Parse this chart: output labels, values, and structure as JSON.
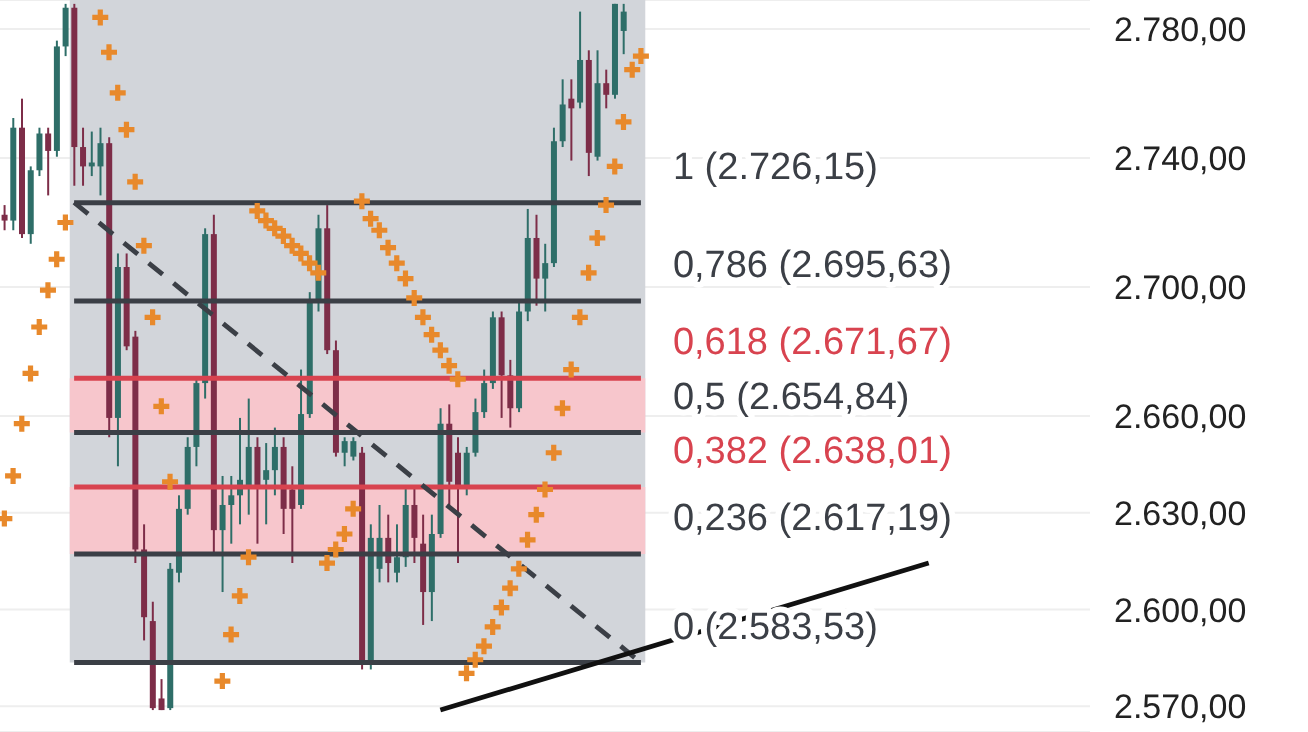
{
  "chart_data": {
    "type": "candlestick",
    "categories": [
      null,
      null,
      null,
      null,
      null,
      null,
      null,
      null,
      null,
      null,
      null,
      null,
      null,
      null,
      null,
      null,
      null,
      null,
      null,
      null,
      null,
      null,
      null,
      null,
      null,
      null,
      null,
      null,
      null,
      null,
      null,
      null,
      null,
      null,
      null,
      null,
      null,
      null,
      null,
      null,
      null,
      null,
      null,
      null,
      null,
      null,
      null,
      null,
      null,
      null,
      null,
      null,
      null,
      null,
      null,
      null,
      null,
      null,
      null,
      null,
      null,
      null,
      null,
      null,
      null,
      null,
      null,
      null,
      null,
      null,
      null,
      null,
      null,
      null,
      null,
      null,
      null,
      null,
      null,
      null,
      null,
      null,
      null,
      null,
      null,
      null,
      null,
      null,
      null,
      null,
      null,
      null,
      null,
      null,
      null,
      null,
      null,
      null,
      null,
      null,
      null,
      null,
      null,
      null,
      null,
      null,
      null,
      null,
      null,
      null,
      null,
      null,
      null,
      null,
      null,
      null,
      null,
      null,
      null,
      null,
      null,
      null,
      null,
      null,
      null
    ],
    "ohlc": [
      [
        2722.4,
        2725.4,
        2717.6,
        2720.6
      ],
      [
        2720.6,
        2752.4,
        2717.6,
        2749.4
      ],
      [
        2749.4,
        2758.4,
        2715.2,
        2716.4
      ],
      [
        2716.4,
        2737.4,
        2713.4,
        2736.2
      ],
      [
        2736.2,
        2749.4,
        2734.4,
        2747.6
      ],
      [
        2747.6,
        2749.4,
        2728.4,
        2742.2
      ],
      [
        2742.2,
        2776.4,
        2740.4,
        2774.6
      ],
      [
        2774.6,
        2787.8,
        2771.6,
        2786.6
      ],
      [
        2786.6,
        2787.8,
        2731.4,
        2743.4
      ],
      [
        2743.4,
        2749.4,
        2731.4,
        2737.4
      ],
      [
        2737.4,
        2748.2,
        2734.4,
        2738.6
      ],
      [
        2737.4,
        2749.4,
        2728.4,
        2744.6
      ],
      [
        2744.6,
        2746.4,
        2653.4,
        2659.4
      ],
      [
        2659.4,
        2710.4,
        2644.4,
        2706.2
      ],
      [
        2706.2,
        2710.4,
        2680.4,
        2681.6
      ],
      [
        2684.6,
        2686.4,
        2614.4,
        2618.6
      ],
      [
        2618.6,
        2626.4,
        2590.4,
        2597.6
      ],
      [
        2596.4,
        2602.4,
        2568.8,
        2569.4
      ],
      [
        2572.4,
        2578.4,
        2568.8,
        2568.8
      ],
      [
        2569.4,
        2614.4,
        2568.8,
        2612.6
      ],
      [
        2611.4,
        2635.4,
        2608.4,
        2631.2
      ],
      [
        2631.2,
        2653.4,
        2629.4,
        2650.4
      ],
      [
        2650.4,
        2671.4,
        2644.4,
        2670.2
      ],
      [
        2670.2,
        2718.2,
        2665.4,
        2716.4
      ],
      [
        2716.4,
        2722.4,
        2617.4,
        2624.6
      ],
      [
        2624.6,
        2641.4,
        2605.4,
        2632.4
      ],
      [
        2632.4,
        2641.4,
        2620.4,
        2635.4
      ],
      [
        2635.4,
        2659.4,
        2626.4,
        2640.2
      ],
      [
        2638.4,
        2665.4,
        2629.4,
        2650.4
      ],
      [
        2650.4,
        2653.4,
        2620.4,
        2638.4
      ],
      [
        2640.2,
        2651.6,
        2626.4,
        2643.2
      ],
      [
        2643.2,
        2656.4,
        2635.4,
        2650.4
      ],
      [
        2650.4,
        2653.4,
        2623.4,
        2631.2
      ],
      [
        2637.2,
        2644.4,
        2614.4,
        2631.2
      ],
      [
        2632.4,
        2674.4,
        2631.2,
        2660.6
      ],
      [
        2660.6,
        2698.4,
        2659.4,
        2695.4
      ],
      [
        2695.4,
        2722.4,
        2692.4,
        2718.2
      ],
      [
        2718.2,
        2725.4,
        2679.2,
        2680.4
      ],
      [
        2680.4,
        2683.4,
        2647.4,
        2648.6
      ],
      [
        2648.6,
        2653.4,
        2644.4,
        2652.2
      ],
      [
        2647.4,
        2653.4,
        2646.2,
        2652.2
      ],
      [
        2648.6,
        2650.4,
        2581.4,
        2583.2
      ],
      [
        2583.2,
        2626.4,
        2581.4,
        2622.2
      ],
      [
        2612.6,
        2632.4,
        2608.4,
        2622.2
      ],
      [
        2622.2,
        2629.4,
        2608.4,
        2614.4
      ],
      [
        2611.4,
        2626.4,
        2608.4,
        2616.2
      ],
      [
        2616.2,
        2638.4,
        2613.2,
        2632.4
      ],
      [
        2632.4,
        2638.4,
        2614.4,
        2622.2
      ],
      [
        2620.4,
        2629.4,
        2595.2,
        2605.4
      ],
      [
        2605.4,
        2629.4,
        2596.4,
        2623.4
      ],
      [
        2623.4,
        2662.4,
        2622.2,
        2657.6
      ],
      [
        2657.6,
        2663.6,
        2632.4,
        2639.6
      ],
      [
        2648.6,
        2653.4,
        2614.4,
        2638.4
      ],
      [
        2638.4,
        2650.4,
        2635.4,
        2648.6
      ],
      [
        2648.6,
        2665.4,
        2647.4,
        2661.2
      ],
      [
        2661.2,
        2674.4,
        2659.4,
        2670.2
      ],
      [
        2670.2,
        2692.4,
        2668.4,
        2690.6
      ],
      [
        2690.6,
        2692.4,
        2659.4,
        2672.6
      ],
      [
        2672.6,
        2677.4,
        2656.4,
        2662.4
      ],
      [
        2662.4,
        2695.4,
        2661.2,
        2692.4
      ],
      [
        2692.4,
        2724.2,
        2689.4,
        2715.2
      ],
      [
        2715.2,
        2722.4,
        2694.2,
        2702.6
      ],
      [
        2702.6,
        2713.4,
        2692.4,
        2707.4
      ],
      [
        2707.4,
        2749.4,
        2706.2,
        2745.2
      ],
      [
        2745.2,
        2764.4,
        2743.4,
        2756.6
      ],
      [
        2758.4,
        2764.4,
        2739.2,
        2755.4
      ],
      [
        2757.2,
        2785.4,
        2755.4,
        2770.4
      ],
      [
        2770.4,
        2773.4,
        2734.4,
        2741.6
      ],
      [
        2740.4,
        2773.4,
        2739.2,
        2763.2
      ],
      [
        2763.2,
        2767.4,
        2755.4,
        2759.6
      ],
      [
        2759.6,
        2787.8,
        2758.4,
        2787.8
      ],
      [
        2779.4,
        2787.8,
        2772.2,
        2785.4
      ],
      null,
      null,
      null,
      null,
      null,
      null,
      null,
      null,
      null,
      null,
      null,
      null,
      null,
      null,
      null,
      null,
      null,
      null,
      null,
      null,
      null,
      null,
      null,
      null,
      null,
      null,
      null,
      null,
      null,
      null,
      null,
      null,
      null,
      null,
      null,
      null,
      null,
      null,
      null,
      null,
      null,
      null,
      null,
      null,
      null,
      null,
      null,
      null,
      null,
      null,
      null,
      null,
      null
    ],
    "colors": [
      "#7d2d48",
      "#2e6e68",
      "#7d2d48",
      "#2e6e68",
      "#2e6e68",
      "#7d2d48",
      "#2e6e68",
      "#2e6e68",
      "#7d2d48",
      "#7d2d48",
      "#2e6e68",
      "#2e6e68",
      "#7d2d48",
      "#2e6e68",
      "#7d2d48",
      "#7d2d48",
      "#7d2d48",
      "#7d2d48",
      "#7d2d48",
      "#2e6e68",
      "#2e6e68",
      "#2e6e68",
      "#2e6e68",
      "#2e6e68",
      "#7d2d48",
      "#2e6e68",
      "#2e6e68",
      "#2e6e68",
      "#2e6e68",
      "#7d2d48",
      "#2e6e68",
      "#2e6e68",
      "#7d2d48",
      "#7d2d48",
      "#2e6e68",
      "#2e6e68",
      "#2e6e68",
      "#7d2d48",
      "#7d2d48",
      "#2e6e68",
      "#2e6e68",
      "#7d2d48",
      "#2e6e68",
      "#2e6e68",
      "#7d2d48",
      "#2e6e68",
      "#2e6e68",
      "#7d2d48",
      "#7d2d48",
      "#2e6e68",
      "#2e6e68",
      "#7d2d48",
      "#7d2d48",
      "#2e6e68",
      "#2e6e68",
      "#2e6e68",
      "#2e6e68",
      "#7d2d48",
      "#7d2d48",
      "#2e6e68",
      "#2e6e68",
      "#7d2d48",
      "#2e6e68",
      "#2e6e68",
      "#2e6e68",
      "#7d2d48",
      "#2e6e68",
      "#7d2d48",
      "#2e6e68",
      "#7d2d48",
      "#2e6e68",
      "#2e6e68",
      null,
      null,
      null,
      null,
      null,
      null,
      null,
      null,
      null,
      null,
      null,
      null,
      null,
      null,
      null,
      null,
      null,
      null,
      null,
      null,
      null,
      null,
      null,
      null,
      null,
      null,
      null,
      null,
      null,
      null,
      null,
      null,
      null,
      null,
      null,
      null,
      null,
      null,
      null,
      null,
      null,
      null,
      null,
      null,
      null,
      null,
      null,
      null,
      null,
      null,
      null,
      null,
      null
    ],
    "series": [
      {
        "type": "scatter",
        "color": "#e8892b",
        "marker": "cross",
        "values": [
          2628.2,
          2641.4,
          2657.6,
          2673.2,
          2687.6,
          2699,
          2708.6,
          2720,
          null,
          null,
          null,
          2783.6,
          2772.8,
          2760.2,
          2748.8,
          2732.6,
          2712.8,
          2690.6,
          2663,
          2639.6,
          null,
          null,
          null,
          null,
          null,
          2577.8,
          2592.2,
          2604.2,
          2616.2,
          2723.6,
          2720.6,
          2718.2,
          2715.8,
          2712.8,
          2710.4,
          2707.4,
          2704.4,
          2614.4,
          2618.6,
          2623.4,
          2631.2,
          2726.6,
          2721.2,
          2717.6,
          2712.2,
          2707.4,
          2702.6,
          2696.6,
          2690.6,
          2685.2,
          2680.4,
          2675.6,
          2671.4,
          2580.2,
          2584.4,
          2588.6,
          2594.6,
          2600.6,
          2606.6,
          2612.6,
          2621.6,
          2629.4,
          2637.2,
          2648.6,
          2662.4,
          2674.4,
          2690.6,
          2704.4,
          2715.2,
          2725.4,
          2737.4,
          2751.2,
          2767.4,
          2771.6,
          null,
          null,
          null,
          null,
          null,
          null,
          null,
          null,
          null,
          null,
          null,
          null,
          null,
          null,
          null,
          null,
          null,
          null,
          null,
          null,
          null,
          null,
          null,
          null,
          null,
          null,
          null,
          null,
          null,
          null,
          null,
          null,
          null,
          null,
          null,
          null,
          null,
          null,
          null,
          null,
          null,
          null,
          null,
          null,
          null,
          null,
          null,
          null,
          null,
          null,
          null
        ]
      },
      {
        "type": "line",
        "color": "#3b3f46",
        "line_style": "dashed",
        "values": [
          null,
          null,
          null,
          null,
          null,
          null,
          null,
          null,
          2726.2,
          null,
          null,
          null,
          null,
          null,
          null,
          null,
          null,
          null,
          null,
          null,
          null,
          null,
          null,
          null,
          null,
          null,
          null,
          null,
          null,
          null,
          null,
          null,
          null,
          null,
          null,
          null,
          null,
          null,
          null,
          null,
          null,
          null,
          null,
          null,
          null,
          null,
          null,
          null,
          null,
          null,
          null,
          null,
          null,
          null,
          null,
          null,
          null,
          null,
          null,
          null,
          null,
          null,
          null,
          null,
          null,
          null,
          null,
          null,
          null,
          null,
          null,
          null,
          null,
          2583.5,
          null,
          null,
          null,
          null,
          null,
          null,
          null,
          null,
          null,
          null,
          null,
          null,
          null,
          null,
          null,
          null,
          null,
          null,
          null,
          null,
          null,
          null,
          null,
          null,
          null,
          null,
          null,
          null,
          null,
          null,
          null,
          null,
          null,
          null,
          null,
          null,
          null,
          null,
          null,
          null,
          null,
          null,
          null,
          null,
          null,
          null,
          null,
          null,
          null,
          null,
          null
        ]
      },
      {
        "type": "line",
        "color": "#111111",
        "line_style": "solid",
        "values": [
          null,
          null,
          null,
          null,
          null,
          null,
          null,
          null,
          null,
          null,
          null,
          null,
          null,
          null,
          null,
          null,
          null,
          null,
          null,
          null,
          null,
          null,
          null,
          null,
          null,
          null,
          null,
          null,
          null,
          null,
          null,
          null,
          null,
          null,
          null,
          null,
          null,
          null,
          null,
          null,
          null,
          null,
          null,
          null,
          null,
          null,
          null,
          null,
          null,
          null,
          2568.8,
          null,
          null,
          null,
          null,
          null,
          null,
          null,
          null,
          null,
          null,
          null,
          null,
          null,
          null,
          null,
          null,
          null,
          null,
          null,
          null,
          null,
          null,
          null,
          null,
          null,
          null,
          null,
          null,
          null,
          null,
          null,
          null,
          null,
          null,
          null,
          null,
          null,
          null,
          null,
          null,
          null,
          null,
          null,
          null,
          null,
          null,
          null,
          null,
          null,
          null,
          null,
          null,
          null,
          null,
          null,
          2614.4,
          null,
          null,
          null,
          null,
          null,
          null,
          null,
          null,
          null,
          null,
          null,
          null,
          null,
          null,
          null,
          null,
          null,
          null
        ]
      }
    ],
    "ylim": [
      2562,
      2789
    ],
    "yticks": [
      {
        "value": 2780,
        "label": "2.780,00"
      },
      {
        "value": 2740,
        "label": "2.740,00"
      },
      {
        "value": 2700,
        "label": "2.700,00"
      },
      {
        "value": 2660,
        "label": "2.660,00"
      },
      {
        "value": 2630,
        "label": "2.630,00"
      },
      {
        "value": 2600,
        "label": "2.600,00"
      },
      {
        "value": 2570,
        "label": "2.570,00"
      }
    ],
    "bands": [
      {
        "axis": "y",
        "from": 2583.53,
        "to": 2789,
        "color": "#d2d5da"
      },
      {
        "axis": "y",
        "from": 2654.84,
        "to": 2671.67,
        "color": "#f7c6cc"
      },
      {
        "axis": "y",
        "from": 2617.19,
        "to": 2638.01,
        "color": "#f7c6cc"
      }
    ],
    "ref_lines": [
      {
        "axis": "y",
        "value": 2726.15,
        "label": "1 (2.726,15)",
        "color": "#3b3f46"
      },
      {
        "axis": "y",
        "value": 2695.63,
        "label": "0,786 (2.695,63)",
        "color": "#3b3f46"
      },
      {
        "axis": "y",
        "value": 2671.67,
        "label": "0,618 (2.671,67)",
        "color": "#d8434f"
      },
      {
        "axis": "y",
        "value": 2654.84,
        "label": "0,5 (2.654,84)",
        "color": "#3b3f46"
      },
      {
        "axis": "y",
        "value": 2638.01,
        "label": "0,382 (2.638,01)",
        "color": "#d8434f"
      },
      {
        "axis": "y",
        "value": 2617.19,
        "label": "0,236 (2.617,19)",
        "color": "#3b3f46"
      },
      {
        "axis": "y",
        "value": 2583.53,
        "label": "0 (2.583,53)",
        "color": "#3b3f46"
      }
    ],
    "grid": "y",
    "tick_labels": "y"
  }
}
